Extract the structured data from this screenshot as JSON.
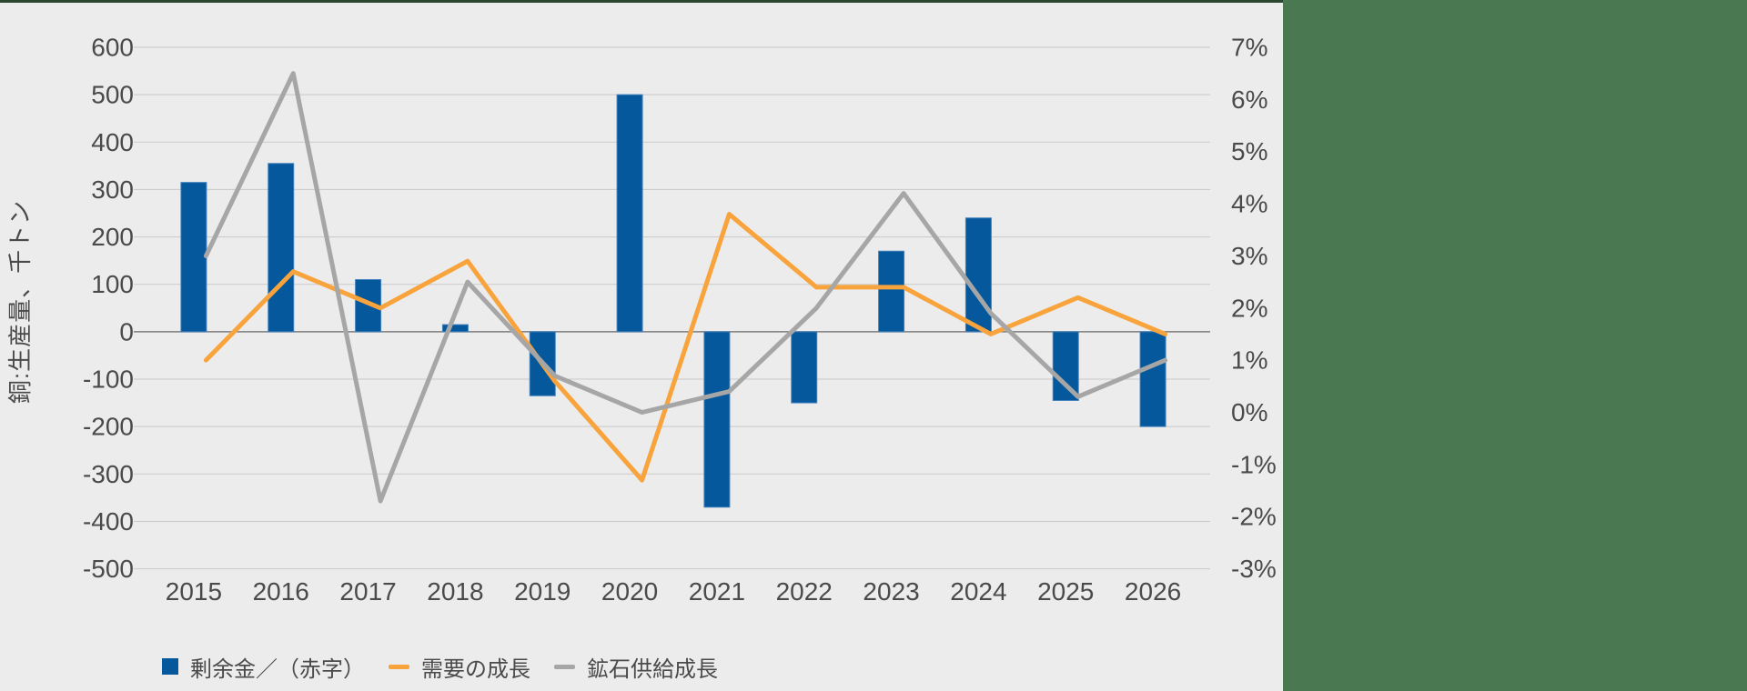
{
  "window": {
    "background_color": "#ececec",
    "top_strip_color": "#2c4632",
    "right_panel_color": "#4a7951"
  },
  "chart_data": {
    "type": "combo-bar-line",
    "title": "",
    "categories": [
      "2015",
      "2016",
      "2017",
      "2018",
      "2019",
      "2020",
      "2021",
      "2022",
      "2023",
      "2024",
      "2025",
      "2026"
    ],
    "series": [
      {
        "name": "剰余金／（赤字）",
        "type": "bar",
        "axis": "left",
        "color": "#05589c",
        "border_color": "#4382bd",
        "values": [
          315,
          355,
          110,
          15,
          -135,
          500,
          -370,
          -150,
          170,
          240,
          -145,
          -200
        ]
      },
      {
        "name": "需要の成長",
        "type": "line",
        "axis": "right",
        "color": "#f8a33c",
        "values": [
          1.0,
          2.7,
          2.0,
          2.9,
          0.6,
          -1.3,
          3.8,
          2.4,
          2.4,
          1.5,
          2.2,
          1.5
        ]
      },
      {
        "name": "鉱石供給成長",
        "type": "line",
        "axis": "right",
        "color": "#a6a6a6",
        "values": [
          3.0,
          6.5,
          -1.7,
          2.5,
          0.7,
          0.0,
          0.4,
          2.0,
          4.2,
          1.9,
          0.3,
          1.0
        ]
      }
    ],
    "left_axis": {
      "title": "銅:生産量、千トン",
      "min": -500,
      "max": 600,
      "step": 100,
      "unit": ""
    },
    "right_axis": {
      "title": "",
      "min": -3,
      "max": 7,
      "step": 1,
      "unit": "%"
    },
    "grid": true,
    "grid_color": "#c9c9c9",
    "zero_line_color": "#7d7d7d",
    "tick_label_color": "#4a4a4a",
    "legend_position": "bottom-left"
  }
}
